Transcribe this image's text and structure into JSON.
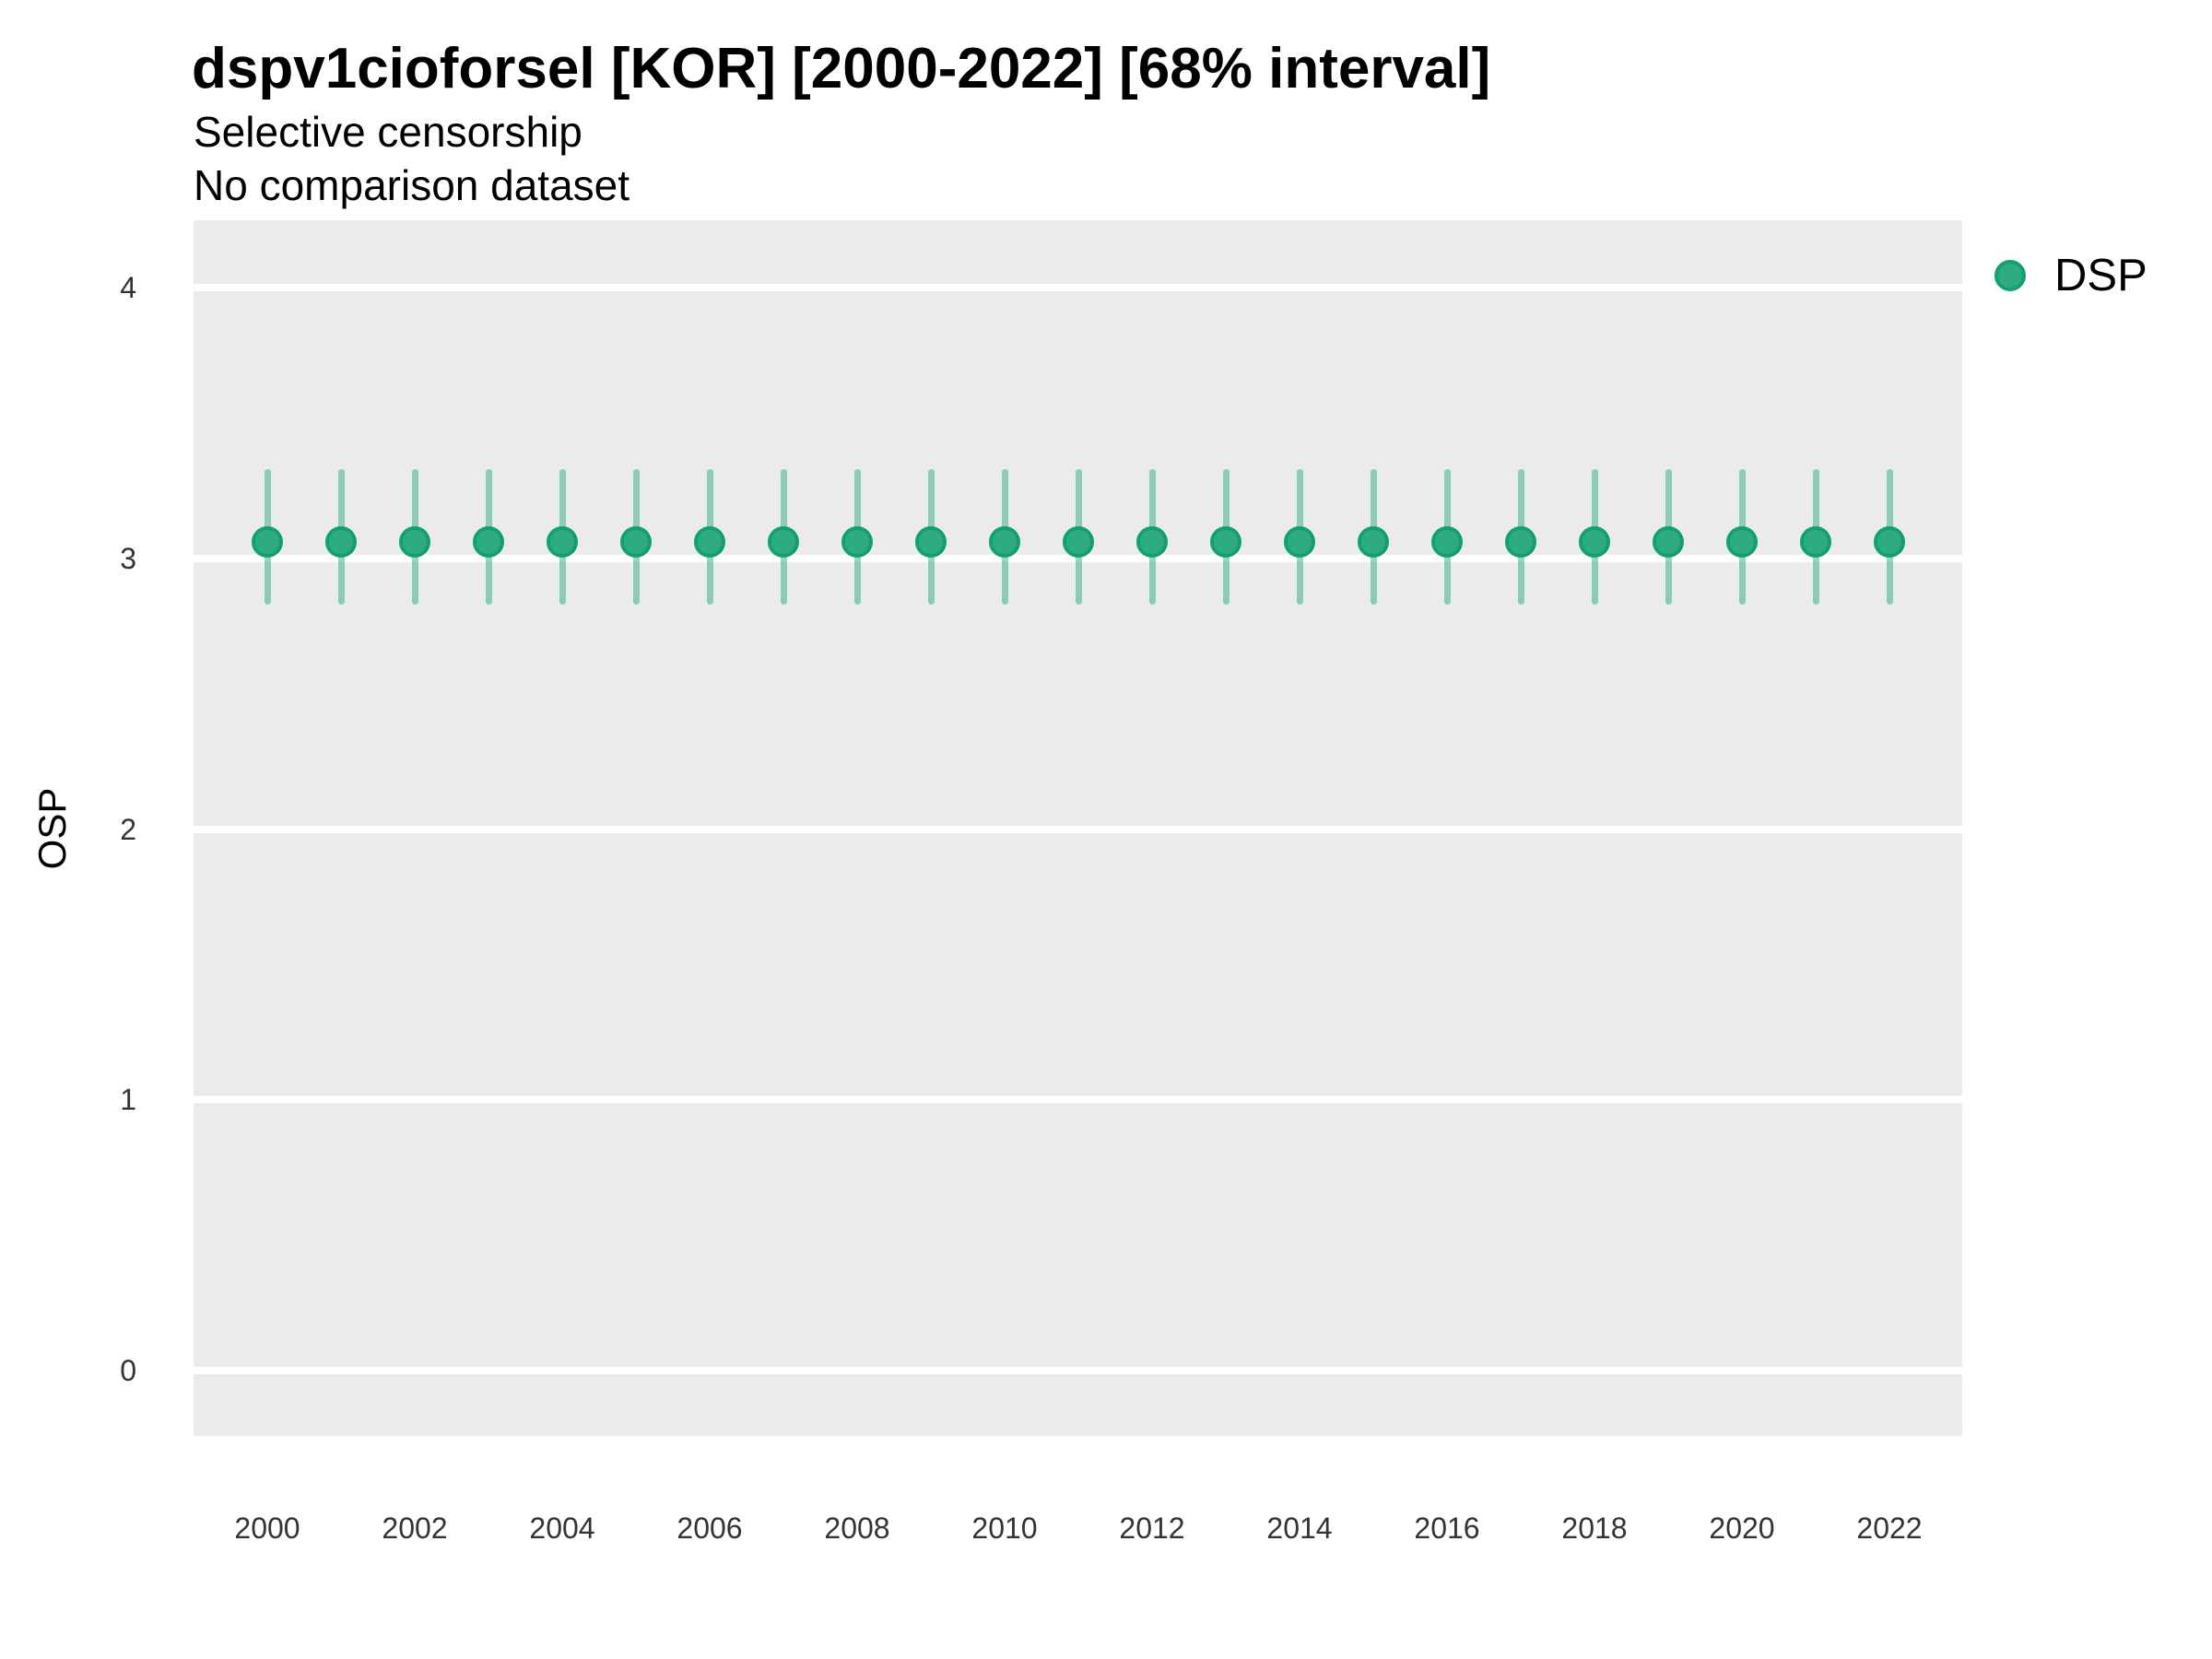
{
  "colors": {
    "panel_bg": "#EBEBEB",
    "gridline": "#FFFFFF",
    "tick_text": "#333333",
    "text": "#000000",
    "accent_green": "#2FAB81"
  },
  "chart_data": {
    "type": "scatter",
    "subtype": "point-interval",
    "title": "dspv1cioforsel [KOR] [2000-2022] [68% interval]",
    "subtitle": "Selective censorship",
    "note": "No comparison dataset",
    "xlabel": "",
    "ylabel": "OSP",
    "ylim": [
      0,
      4
    ],
    "xlim": [
      2000,
      2022
    ],
    "yticks": [
      4,
      3,
      2,
      1,
      0
    ],
    "xticks": [
      2000,
      2002,
      2004,
      2006,
      2008,
      2010,
      2012,
      2014,
      2016,
      2018,
      2020,
      2022
    ],
    "grid": "horizontal-major-only",
    "legend_position": "right",
    "interval_level": "68%",
    "series": [
      {
        "name": "DSP",
        "color": "#2FAB81",
        "border_color": "#10A173",
        "interval_color": "rgba(46,171,128,0.5)",
        "points": [
          {
            "x": 2000,
            "y": 3.06,
            "lo": 2.83,
            "hi": 3.33
          },
          {
            "x": 2001,
            "y": 3.06,
            "lo": 2.83,
            "hi": 3.33
          },
          {
            "x": 2002,
            "y": 3.06,
            "lo": 2.83,
            "hi": 3.33
          },
          {
            "x": 2003,
            "y": 3.06,
            "lo": 2.83,
            "hi": 3.33
          },
          {
            "x": 2004,
            "y": 3.06,
            "lo": 2.83,
            "hi": 3.33
          },
          {
            "x": 2005,
            "y": 3.06,
            "lo": 2.83,
            "hi": 3.33
          },
          {
            "x": 2006,
            "y": 3.06,
            "lo": 2.83,
            "hi": 3.33
          },
          {
            "x": 2007,
            "y": 3.06,
            "lo": 2.83,
            "hi": 3.33
          },
          {
            "x": 2008,
            "y": 3.06,
            "lo": 2.83,
            "hi": 3.33
          },
          {
            "x": 2009,
            "y": 3.06,
            "lo": 2.83,
            "hi": 3.33
          },
          {
            "x": 2010,
            "y": 3.06,
            "lo": 2.83,
            "hi": 3.33
          },
          {
            "x": 2011,
            "y": 3.06,
            "lo": 2.83,
            "hi": 3.33
          },
          {
            "x": 2012,
            "y": 3.06,
            "lo": 2.83,
            "hi": 3.33
          },
          {
            "x": 2013,
            "y": 3.06,
            "lo": 2.83,
            "hi": 3.33
          },
          {
            "x": 2014,
            "y": 3.06,
            "lo": 2.83,
            "hi": 3.33
          },
          {
            "x": 2015,
            "y": 3.06,
            "lo": 2.83,
            "hi": 3.33
          },
          {
            "x": 2016,
            "y": 3.06,
            "lo": 2.83,
            "hi": 3.33
          },
          {
            "x": 2017,
            "y": 3.06,
            "lo": 2.83,
            "hi": 3.33
          },
          {
            "x": 2018,
            "y": 3.06,
            "lo": 2.83,
            "hi": 3.33
          },
          {
            "x": 2019,
            "y": 3.06,
            "lo": 2.83,
            "hi": 3.33
          },
          {
            "x": 2020,
            "y": 3.06,
            "lo": 2.83,
            "hi": 3.33
          },
          {
            "x": 2021,
            "y": 3.06,
            "lo": 2.83,
            "hi": 3.33
          },
          {
            "x": 2022,
            "y": 3.06,
            "lo": 2.83,
            "hi": 3.33
          }
        ]
      }
    ]
  }
}
